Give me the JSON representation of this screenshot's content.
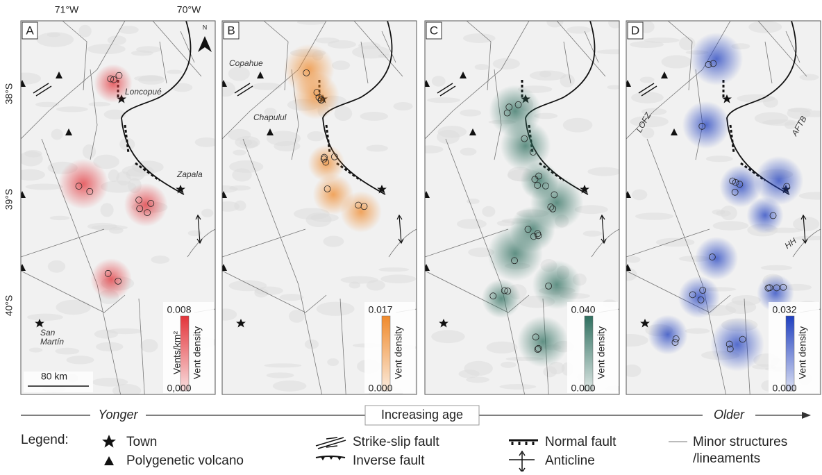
{
  "figure": {
    "lon_labels": [
      "71°W",
      "70°W"
    ],
    "lat_labels": [
      "38°S",
      "39°S",
      "40°S"
    ],
    "north": "N",
    "scale_bar": "80 km",
    "panels": [
      {
        "letter": "A",
        "color": "#e3343a",
        "cbar_max": "0.008",
        "cbar_min": "0,000",
        "cbar_title": "Vent density",
        "cbar_unit": "Vents/km²",
        "places": [
          "Loncopué",
          "Zapala",
          "San",
          "Martín"
        ]
      },
      {
        "letter": "B",
        "color": "#f08a2c",
        "cbar_max": "0.017",
        "cbar_min": "0.000",
        "cbar_title": "Vent density",
        "places": [
          "Copahue",
          "Chapulul"
        ]
      },
      {
        "letter": "C",
        "color": "#2f6f5f",
        "cbar_max": "0.040",
        "cbar_min": "0.000",
        "cbar_title": "Vent density"
      },
      {
        "letter": "D",
        "color": "#1f3fbf",
        "cbar_max": "0.032",
        "cbar_min": "0.000",
        "cbar_title": "Vent density",
        "places": [
          "LOFZ",
          "AFTB",
          "HH"
        ]
      }
    ],
    "age": {
      "younger": "Yonger",
      "center": "Increasing age",
      "older": "Older"
    },
    "legend": {
      "title": "Legend:",
      "items": [
        "Town",
        "Polygenetic volcano",
        "Strike-slip fault",
        "Inverse fault",
        "Normal fault",
        "Anticline",
        "Minor structures",
        "/lineaments"
      ]
    }
  }
}
